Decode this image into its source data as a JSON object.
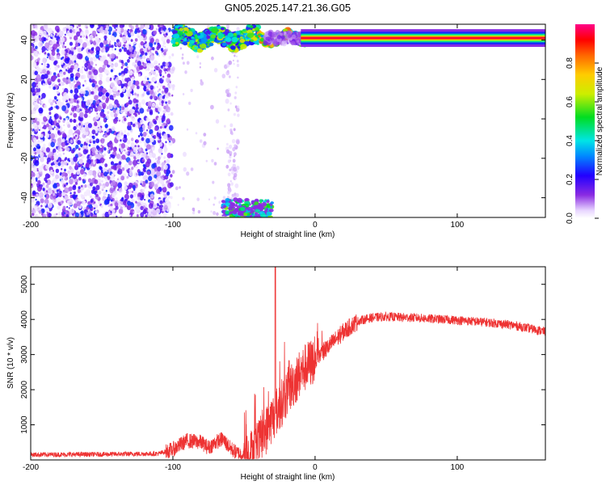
{
  "title": "GN05.2025.147.21.36.G05",
  "chart_data": [
    {
      "type": "heatmap",
      "title": "GN05.2025.147.21.36.G05",
      "xlabel": "Height of straight line (km)",
      "ylabel": "Frequency (Hz)",
      "xlim": [
        -200,
        162
      ],
      "ylim": [
        -50,
        48
      ],
      "x_ticks": [
        -200,
        -100,
        0,
        100
      ],
      "y_ticks": [
        -40,
        -20,
        0,
        20,
        40
      ],
      "colorbar": {
        "label": "Normalized spectral amplitude",
        "range": [
          0,
          1
        ],
        "ticks": [
          0.0,
          0.2,
          0.4,
          0.6,
          0.8
        ],
        "tick_labels": [
          "0.0",
          "0.2",
          "0.4",
          "0.6",
          "0.8"
        ],
        "colormap": "rainbow (white → violet → blue → cyan → green → yellow → red → magenta)"
      },
      "features": [
        {
          "description": "diffuse noise speckle",
          "x_range": [
            -200,
            -102
          ],
          "y_range": [
            -50,
            48
          ],
          "amplitude": [
            0.0,
            0.25
          ]
        },
        {
          "description": "sparse speckle",
          "x_range": [
            -102,
            -55
          ],
          "y_range": [
            -50,
            48
          ],
          "amplitude": [
            0.0,
            0.1
          ]
        },
        {
          "description": "dominant tone ridge",
          "x_range": [
            -100,
            162
          ],
          "frequency": 41,
          "amplitude_at_end": 0.95
        },
        {
          "description": "aliased branch",
          "x_range": [
            -65,
            -30
          ],
          "y_range": [
            -50,
            -41
          ],
          "amplitude": [
            0.3,
            0.6
          ]
        }
      ]
    },
    {
      "type": "line",
      "xlabel": "Height of straight line (km)",
      "ylabel": "SNR (10 * v/v)",
      "xlim": [
        -200,
        162
      ],
      "ylim": [
        0,
        5500
      ],
      "x_ticks": [
        -200,
        -100,
        0,
        100
      ],
      "y_ticks": [
        1000,
        2000,
        3000,
        4000,
        5000
      ],
      "color": "#ee3333",
      "envelope_x": [
        -200,
        -150,
        -110,
        -100,
        -90,
        -80,
        -75,
        -70,
        -65,
        -60,
        -55,
        -50,
        -45,
        -40,
        -35,
        -30,
        -25,
        -20,
        -15,
        -10,
        -5,
        0,
        10,
        20,
        30,
        40,
        50,
        60,
        70,
        80,
        90,
        100,
        110,
        120,
        130,
        140,
        150,
        162
      ],
      "envelope_y": [
        150,
        160,
        180,
        300,
        550,
        500,
        350,
        500,
        600,
        350,
        200,
        150,
        200,
        450,
        800,
        1200,
        1500,
        1900,
        2200,
        2500,
        2700,
        2850,
        3250,
        3650,
        3950,
        4050,
        4080,
        4060,
        4050,
        4020,
        4000,
        3980,
        3950,
        3920,
        3880,
        3830,
        3750,
        3650
      ],
      "peak": {
        "x": -28,
        "y": 5500
      }
    }
  ]
}
